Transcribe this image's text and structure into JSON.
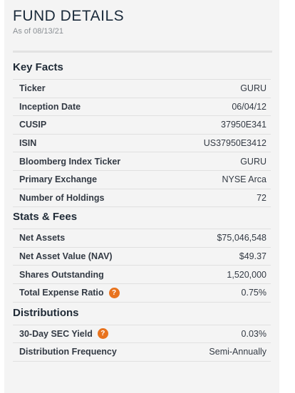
{
  "header": {
    "title": "FUND DETAILS",
    "as_of": "As of 08/13/21"
  },
  "colors": {
    "panel_bg": "#f4f4f4",
    "help_icon": "#e8731e"
  },
  "key_facts": {
    "title": "Key Facts",
    "rows": [
      {
        "label": "Ticker",
        "value": "GURU"
      },
      {
        "label": "Inception Date",
        "value": "06/04/12"
      },
      {
        "label": "CUSIP",
        "value": "37950E341"
      },
      {
        "label": "ISIN",
        "value": "US37950E3412"
      },
      {
        "label": "Bloomberg Index Ticker",
        "value": "GURU"
      },
      {
        "label": "Primary Exchange",
        "value": "NYSE Arca"
      },
      {
        "label": "Number of Holdings",
        "value": "72"
      }
    ]
  },
  "stats_fees": {
    "title": "Stats & Fees",
    "rows": [
      {
        "label": "Net Assets",
        "value": "$75,046,548"
      },
      {
        "label": "Net Asset Value (NAV)",
        "value": "$49.37"
      },
      {
        "label": "Shares Outstanding",
        "value": "1,520,000"
      },
      {
        "label": "Total Expense Ratio",
        "value": "0.75%",
        "help": "?"
      }
    ]
  },
  "distributions": {
    "title": "Distributions",
    "rows": [
      {
        "label": "30-Day SEC Yield",
        "value": "0.03%",
        "help": "?"
      },
      {
        "label": "Distribution Frequency",
        "value": "Semi-Annually"
      }
    ]
  }
}
